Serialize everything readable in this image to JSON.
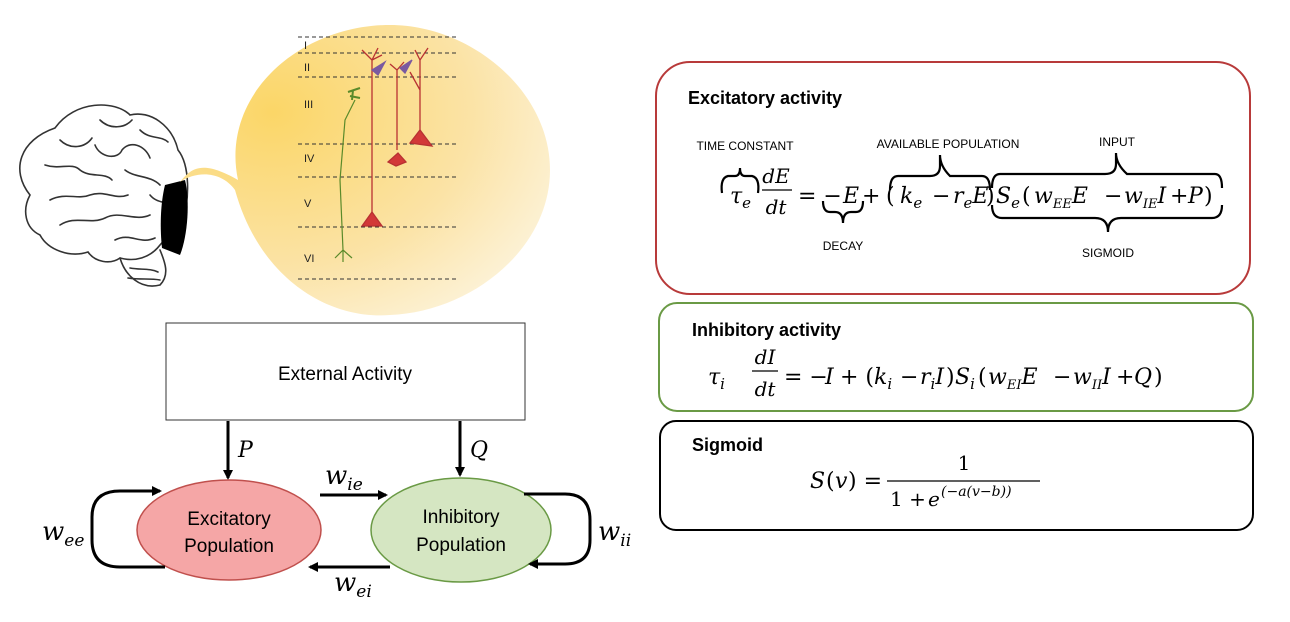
{
  "cortex": {
    "layers": [
      "I",
      "II",
      "III",
      "IV",
      "V",
      "VI"
    ]
  },
  "external": {
    "label": "External Activity",
    "input_p": "P",
    "input_q": "Q"
  },
  "populations": {
    "excitatory": {
      "line1": "Excitatory",
      "line2": "Population",
      "fill": "#f5a6a6",
      "stroke": "#c0504d"
    },
    "inhibitory": {
      "line1": "Inhibitory",
      "line2": "Population",
      "fill": "#d5e6c2",
      "stroke": "#6a9a45"
    }
  },
  "weights": {
    "ee": {
      "base": "w",
      "sub": "ee"
    },
    "ie": {
      "base": "w",
      "sub": "ie"
    },
    "ei": {
      "base": "w",
      "sub": "ei"
    },
    "ii": {
      "base": "w",
      "sub": "ii"
    }
  },
  "excitatory_box": {
    "title": "Excitatory activity",
    "border_color": "#b83a3a",
    "annotations": {
      "time_constant": "TIME CONSTANT",
      "available_population": "AVAILABLE POPULATION",
      "input": "INPUT",
      "decay": "DECAY",
      "sigmoid": "SIGMOID"
    }
  },
  "inhibitory_box": {
    "title": "Inhibitory activity",
    "border_color": "#6a9a45"
  },
  "sigmoid_box": {
    "title": "Sigmoid",
    "border_color": "#000000"
  }
}
